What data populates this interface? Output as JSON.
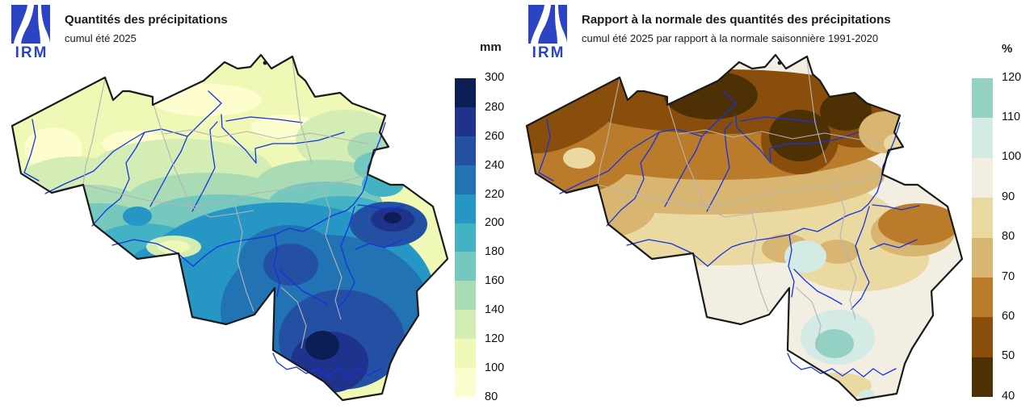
{
  "theme": {
    "river": "#1533e2",
    "province": "#b4b4b4",
    "country": "#1a1a1a",
    "logo-blue": "#2b44c4",
    "background": "#ffffff"
  },
  "left_panel": {
    "logo_text": "IRM",
    "title": "Quantités des précipitations",
    "subtitle": "cumul été 2025",
    "legend": {
      "unit": "mm",
      "tick_labels": [
        "300",
        "280",
        "260",
        "240",
        "220",
        "200",
        "180",
        "160",
        "140",
        "120",
        "100",
        "80"
      ],
      "band_colors_top_to_bottom": [
        "#0b1e56",
        "#1f338d",
        "#2450a3",
        "#2273b4",
        "#2696c5",
        "#43b2c2",
        "#75c8bd",
        "#a9dbb5",
        "#d4edb4",
        "#eff8b4",
        "#fdfdcf"
      ]
    }
  },
  "right_panel": {
    "logo_text": "IRM",
    "title": "Rapport à la normale des quantités des précipitations",
    "subtitle": "cumul été 2025 par rapport à la normale saisonnière 1991-2020",
    "legend": {
      "unit": "%",
      "tick_labels": [
        "120",
        "110",
        "100",
        "90",
        "80",
        "70",
        "60",
        "50",
        "40"
      ],
      "band_colors_top_to_bottom": [
        "#92d1c3",
        "#d4eae4",
        "#f2eee2",
        "#ebd9a2",
        "#d8b571",
        "#ba7c2a",
        "#8a4e0c",
        "#4e3005"
      ]
    }
  }
}
